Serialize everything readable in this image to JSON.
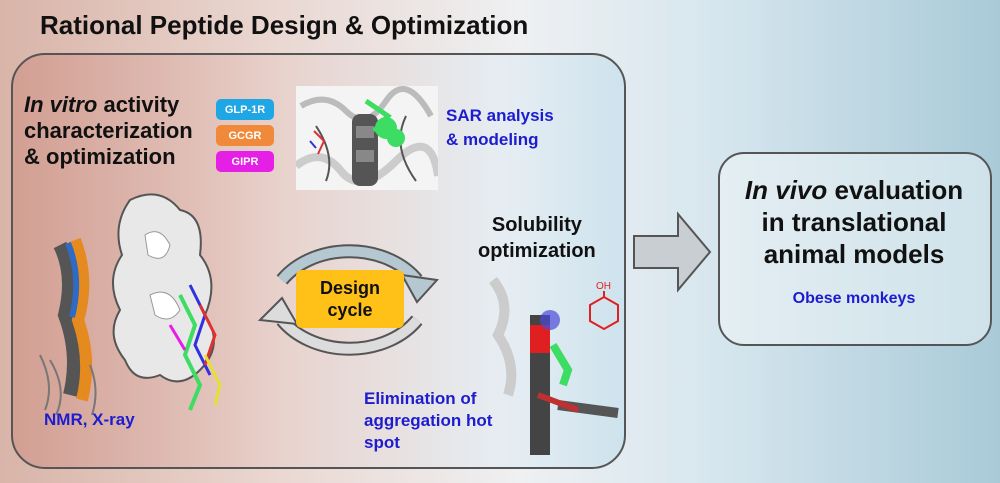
{
  "title": "Rational Peptide Design & Optimization",
  "invitro": {
    "italic": "In vitro",
    "rest1": " activity",
    "line2": "characterization",
    "line3": "& optimization"
  },
  "receptors": [
    "GLP-1R",
    "GCGR",
    "GIPR"
  ],
  "sar": {
    "line1": "SAR analysis",
    "line2": "& modeling"
  },
  "solubility": {
    "line1": "Solubility",
    "line2": "optimization"
  },
  "design_cycle": {
    "line1": "Design",
    "line2": "cycle"
  },
  "elimination": {
    "line1": "Elimination of",
    "line2": "aggregation hot",
    "line3": "spot"
  },
  "nmr": "NMR, X-ray",
  "invivo": {
    "italic": "In vivo",
    "rest1": " evaluation",
    "line2": "in translational",
    "line3": "animal models"
  },
  "monkeys": "Obese monkeys",
  "chemical_label": "OH",
  "colors": {
    "glp1r": "#1fa6e5",
    "gcgr": "#f08a3a",
    "gipr": "#e61fe6",
    "design": "#ffc117",
    "blue_text": "#1d1dcf"
  }
}
